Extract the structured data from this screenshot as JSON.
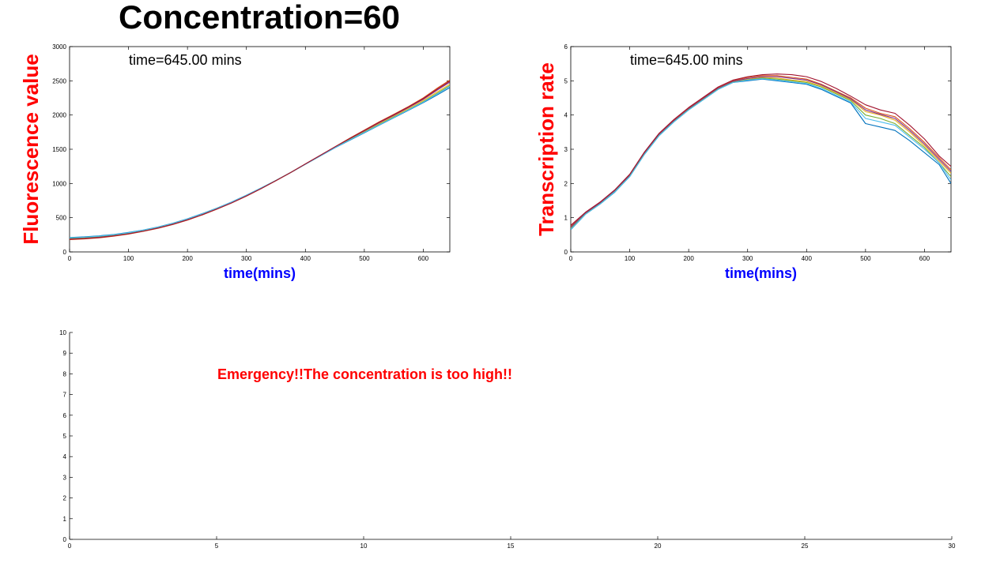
{
  "figure_title": "Concentration=60",
  "colors": {
    "title": "#000000",
    "ylabel": "#ff0000",
    "xlabel": "#0000ff",
    "warning": "#ff0000",
    "series": [
      "#0072bd",
      "#d95319",
      "#edb120",
      "#7e2f8e",
      "#77ac30",
      "#4dbeee",
      "#a2142f"
    ]
  },
  "chart_data": [
    {
      "id": "fluorescence",
      "type": "line",
      "xlabel": "time(mins)",
      "ylabel": "Fluorescence value",
      "annotation": "time=645.00 mins",
      "xlim": [
        0,
        645
      ],
      "ylim": [
        0,
        3000
      ],
      "xticks": [
        0,
        100,
        200,
        300,
        400,
        500,
        600
      ],
      "yticks": [
        0,
        500,
        1000,
        1500,
        2000,
        2500,
        3000
      ],
      "grid": false,
      "x": [
        0,
        25,
        50,
        75,
        100,
        125,
        150,
        175,
        200,
        225,
        250,
        275,
        300,
        325,
        350,
        375,
        400,
        425,
        450,
        475,
        500,
        525,
        550,
        575,
        600,
        625,
        645
      ],
      "series": [
        {
          "values": [
            210,
            220,
            235,
            255,
            285,
            320,
            365,
            420,
            485,
            560,
            640,
            730,
            830,
            935,
            1045,
            1160,
            1280,
            1400,
            1520,
            1630,
            1740,
            1850,
            1960,
            2070,
            2180,
            2300,
            2400
          ]
        },
        {
          "values": [
            180,
            190,
            205,
            230,
            260,
            300,
            345,
            400,
            465,
            540,
            625,
            715,
            815,
            925,
            1040,
            1160,
            1285,
            1410,
            1535,
            1660,
            1780,
            1900,
            2010,
            2125,
            2250,
            2400,
            2510
          ]
        },
        {
          "values": [
            195,
            205,
            220,
            242,
            272,
            310,
            355,
            410,
            475,
            550,
            633,
            722,
            822,
            930,
            1043,
            1160,
            1283,
            1405,
            1528,
            1645,
            1760,
            1872,
            1982,
            2095,
            2212,
            2345,
            2450
          ]
        },
        {
          "values": [
            190,
            200,
            215,
            238,
            268,
            306,
            352,
            407,
            472,
            547,
            630,
            720,
            820,
            928,
            1042,
            1160,
            1284,
            1408,
            1532,
            1652,
            1770,
            1886,
            1996,
            2110,
            2230,
            2372,
            2480
          ]
        },
        {
          "values": [
            200,
            210,
            225,
            247,
            277,
            315,
            360,
            415,
            480,
            555,
            637,
            726,
            826,
            933,
            1044,
            1160,
            1282,
            1403,
            1524,
            1638,
            1750,
            1860,
            1970,
            2080,
            2195,
            2325,
            2430
          ]
        },
        {
          "values": [
            205,
            215,
            230,
            251,
            281,
            318,
            362,
            417,
            482,
            557,
            638,
            728,
            828,
            934,
            1045,
            1160,
            1281,
            1402,
            1522,
            1635,
            1745,
            1855,
            1965,
            2075,
            2188,
            2315,
            2420
          ]
        },
        {
          "values": [
            185,
            195,
            210,
            234,
            264,
            303,
            348,
            403,
            468,
            543,
            627,
            717,
            818,
            926,
            1041,
            1160,
            1285,
            1409,
            1534,
            1656,
            1775,
            1893,
            2003,
            2118,
            2240,
            2386,
            2495
          ]
        }
      ]
    },
    {
      "id": "transcription",
      "type": "line",
      "xlabel": "time(mins)",
      "ylabel": "Transcription rate",
      "annotation": "time=645.00 mins",
      "xlim": [
        0,
        645
      ],
      "ylim": [
        0,
        6
      ],
      "xticks": [
        0,
        100,
        200,
        300,
        400,
        500,
        600
      ],
      "yticks": [
        0,
        1,
        2,
        3,
        4,
        5,
        6
      ],
      "grid": false,
      "x": [
        0,
        25,
        50,
        75,
        100,
        125,
        150,
        175,
        200,
        225,
        250,
        275,
        300,
        325,
        350,
        375,
        400,
        425,
        450,
        475,
        500,
        525,
        550,
        575,
        600,
        625,
        645
      ],
      "series": [
        {
          "values": [
            0.65,
            1.1,
            1.4,
            1.75,
            2.2,
            2.85,
            3.4,
            3.8,
            4.15,
            4.45,
            4.75,
            4.95,
            5.0,
            5.05,
            5.0,
            4.95,
            4.9,
            4.75,
            4.55,
            4.35,
            3.75,
            3.65,
            3.55,
            3.25,
            2.9,
            2.55,
            2.0
          ]
        },
        {
          "values": [
            0.75,
            1.15,
            1.45,
            1.8,
            2.25,
            2.9,
            3.45,
            3.85,
            4.2,
            4.5,
            4.8,
            5.0,
            5.1,
            5.15,
            5.15,
            5.1,
            5.05,
            4.9,
            4.7,
            4.5,
            4.2,
            4.05,
            3.95,
            3.6,
            3.2,
            2.75,
            2.4
          ]
        },
        {
          "values": [
            0.7,
            1.12,
            1.42,
            1.78,
            2.22,
            2.87,
            3.42,
            3.82,
            4.17,
            4.47,
            4.77,
            4.97,
            5.05,
            5.1,
            5.08,
            5.02,
            4.98,
            4.85,
            4.65,
            4.45,
            4.1,
            4.0,
            3.85,
            3.5,
            3.1,
            2.65,
            2.3
          ]
        },
        {
          "values": [
            0.72,
            1.13,
            1.43,
            1.79,
            2.23,
            2.88,
            3.43,
            3.83,
            4.18,
            4.48,
            4.78,
            4.98,
            5.07,
            5.12,
            5.12,
            5.07,
            5.02,
            4.88,
            4.68,
            4.47,
            4.15,
            4.02,
            3.9,
            3.55,
            3.15,
            2.7,
            2.35
          ]
        },
        {
          "values": [
            0.68,
            1.11,
            1.41,
            1.77,
            2.21,
            2.86,
            3.41,
            3.81,
            4.16,
            4.46,
            4.76,
            4.96,
            5.03,
            5.08,
            5.05,
            5.0,
            4.95,
            4.82,
            4.62,
            4.42,
            4.0,
            3.9,
            3.75,
            3.4,
            3.05,
            2.6,
            2.2
          ]
        },
        {
          "values": [
            0.66,
            1.1,
            1.4,
            1.76,
            2.2,
            2.85,
            3.4,
            3.8,
            4.15,
            4.45,
            4.75,
            4.95,
            5.02,
            5.06,
            5.02,
            4.97,
            4.92,
            4.78,
            4.58,
            4.38,
            3.9,
            3.8,
            3.7,
            3.35,
            3.0,
            2.6,
            2.1
          ]
        },
        {
          "values": [
            0.78,
            1.16,
            1.46,
            1.82,
            2.27,
            2.92,
            3.47,
            3.87,
            4.22,
            4.52,
            4.82,
            5.02,
            5.12,
            5.18,
            5.2,
            5.18,
            5.12,
            4.98,
            4.78,
            4.55,
            4.3,
            4.15,
            4.05,
            3.7,
            3.3,
            2.8,
            2.5
          ]
        }
      ]
    },
    {
      "id": "status",
      "type": "line",
      "annotation": "Emergency!!The concentration is too high!!",
      "xlim": [
        0,
        30
      ],
      "ylim": [
        0,
        10
      ],
      "xticks": [
        0,
        5,
        10,
        15,
        20,
        25,
        30
      ],
      "yticks": [
        0,
        1,
        2,
        3,
        4,
        5,
        6,
        7,
        8,
        9,
        10
      ],
      "grid": false,
      "series": []
    }
  ]
}
